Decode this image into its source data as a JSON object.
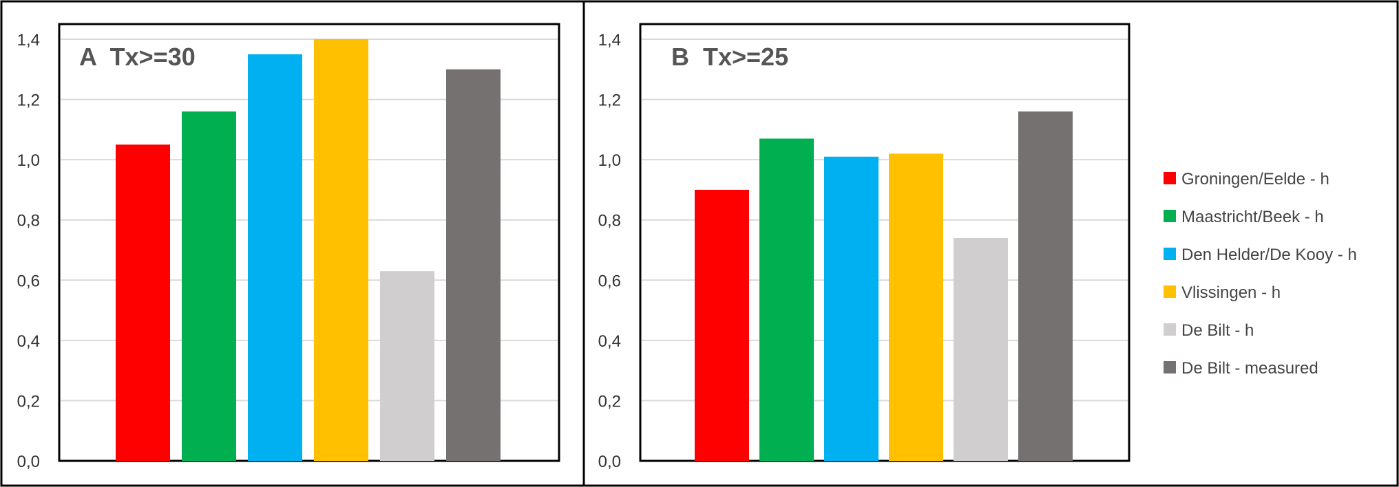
{
  "chart_data": [
    {
      "type": "bar",
      "title": "A  Tx>=30",
      "xlabel": "",
      "ylabel": "",
      "categories": [
        "Groningen/Eelde - h",
        "Maastricht/Beek - h",
        "Den Helder/De Kooy - h",
        "Vlissingen - h",
        "De Bilt - h",
        "De Bilt - measured"
      ],
      "values": [
        1.05,
        1.16,
        1.35,
        1.4,
        0.63,
        1.3
      ],
      "ylim": [
        0,
        1.4
      ],
      "yticks": [
        "0,0",
        "0,2",
        "0,4",
        "0,6",
        "0,8",
        "1,0",
        "1,2",
        "1,4"
      ],
      "grid": true
    },
    {
      "type": "bar",
      "title": "B  Tx>=25",
      "xlabel": "",
      "ylabel": "",
      "categories": [
        "Groningen/Eelde - h",
        "Maastricht/Beek - h",
        "Den Helder/De Kooy - h",
        "Vlissingen - h",
        "De Bilt - h",
        "De Bilt - measured"
      ],
      "values": [
        0.9,
        1.07,
        1.01,
        1.02,
        0.74,
        1.16
      ],
      "ylim": [
        0,
        1.4
      ],
      "yticks": [
        "0,0",
        "0,2",
        "0,4",
        "0,6",
        "0,8",
        "1,0",
        "1,2",
        "1,4"
      ],
      "grid": true
    }
  ],
  "legend": {
    "placement": "right",
    "items": [
      {
        "label": "Groningen/Eelde - h",
        "color": "#ff0000"
      },
      {
        "label": "Maastricht/Beek - h",
        "color": "#00b050"
      },
      {
        "label": "Den Helder/De Kooy - h",
        "color": "#00b0f0"
      },
      {
        "label": "Vlissingen - h",
        "color": "#ffc000"
      },
      {
        "label": "De Bilt - h",
        "color": "#d0cece"
      },
      {
        "label": "De Bilt - measured",
        "color": "#767171"
      }
    ]
  }
}
